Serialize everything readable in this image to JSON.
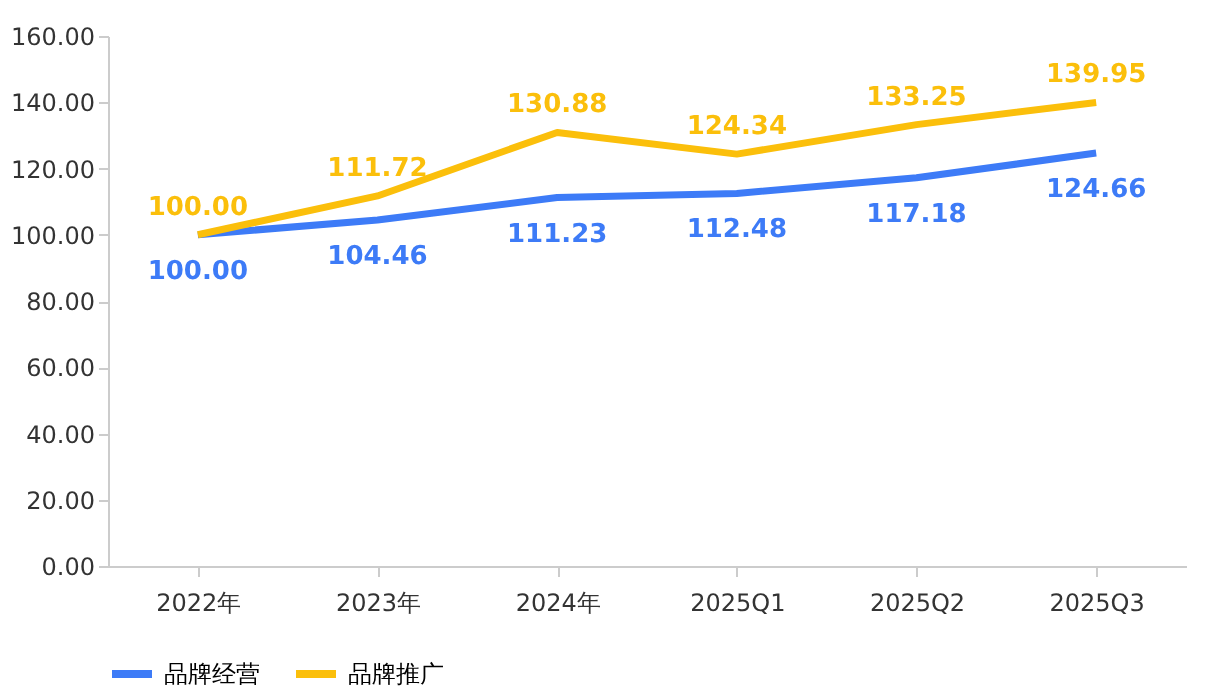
{
  "chart_data": {
    "type": "line",
    "categories": [
      "2022年",
      "2023年",
      "2024年",
      "2025Q1",
      "2025Q2",
      "2025Q3"
    ],
    "series": [
      {
        "name": "品牌经营",
        "color": "#3d7bf7",
        "values": [
          100.0,
          104.46,
          111.23,
          112.48,
          117.18,
          124.66
        ],
        "value_labels": [
          "100.00",
          "104.46",
          "111.23",
          "112.48",
          "117.18",
          "124.66"
        ]
      },
      {
        "name": "品牌推广",
        "color": "#fbbf0b",
        "values": [
          100.0,
          111.72,
          130.88,
          124.34,
          133.25,
          139.95
        ],
        "value_labels": [
          "100.00",
          "111.72",
          "130.88",
          "124.34",
          "133.25",
          "139.95"
        ]
      }
    ],
    "ylim": [
      0,
      160
    ],
    "yticks": [
      {
        "value": 0,
        "label": "0.00"
      },
      {
        "value": 20,
        "label": "20.00"
      },
      {
        "value": 40,
        "label": "40.00"
      },
      {
        "value": 60,
        "label": "60.00"
      },
      {
        "value": 80,
        "label": "80.00"
      },
      {
        "value": 100,
        "label": "100.00"
      },
      {
        "value": 120,
        "label": "120.00"
      },
      {
        "value": 140,
        "label": "140.00"
      },
      {
        "value": 160,
        "label": "160.00"
      }
    ],
    "grid": false,
    "legend": "bottom",
    "marker": "none",
    "line_style": "solid"
  }
}
